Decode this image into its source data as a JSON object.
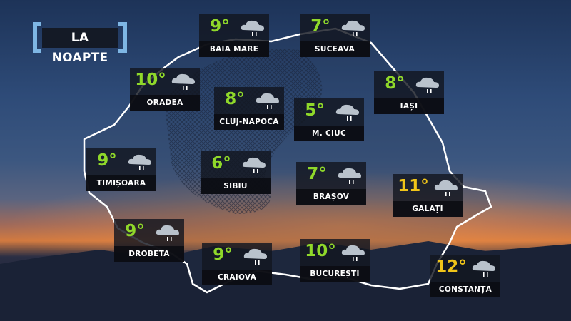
{
  "title": "LA NOAPTE",
  "colors": {
    "mild": "#8fd82a",
    "warm": "#f0c419",
    "bracket": "#7eb6e4"
  },
  "icon": "rain-cloud-icon",
  "cities": [
    {
      "name": "BAIA MARE",
      "temp": "9°"
    },
    {
      "name": "SUCEAVA",
      "temp": "7°"
    },
    {
      "name": "ORADEA",
      "temp": "10°"
    },
    {
      "name": "IAȘI",
      "temp": "8°"
    },
    {
      "name": "CLUJ-NAPOCA",
      "temp": "8°"
    },
    {
      "name": "M. CIUC",
      "temp": "5°"
    },
    {
      "name": "TIMIȘOARA",
      "temp": "9°"
    },
    {
      "name": "SIBIU",
      "temp": "6°"
    },
    {
      "name": "BRAȘOV",
      "temp": "7°"
    },
    {
      "name": "GALAȚI",
      "temp": "11°"
    },
    {
      "name": "DROBETA",
      "temp": "9°"
    },
    {
      "name": "CRAIOVA",
      "temp": "9°"
    },
    {
      "name": "BUCUREȘTI",
      "temp": "10°"
    },
    {
      "name": "CONSTANȚA",
      "temp": "12°"
    }
  ]
}
